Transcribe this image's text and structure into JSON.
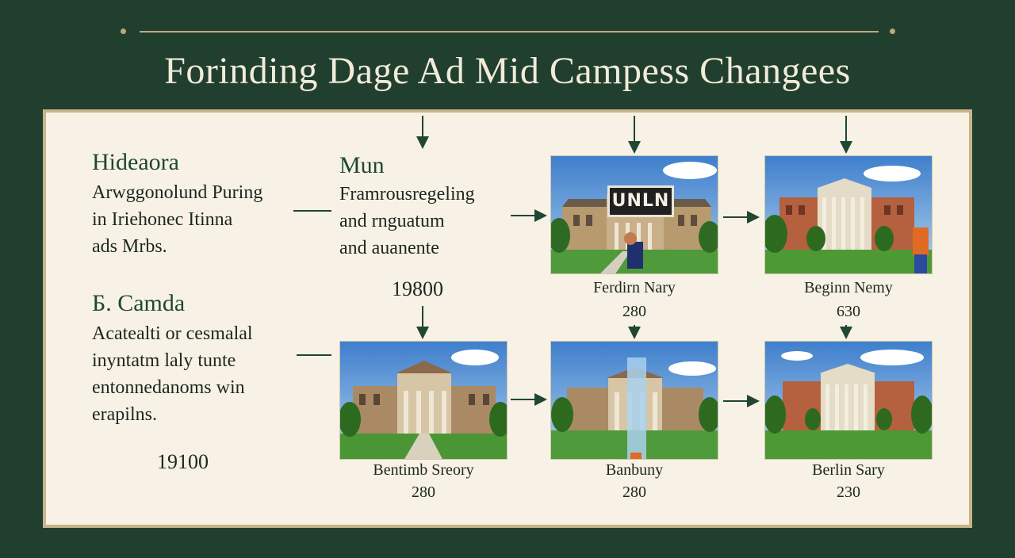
{
  "title": "Forinding Dage Ad Mid Campess Changees",
  "left_blocks": [
    {
      "heading": "Hideaora",
      "lines": [
        "Arwggonolund Puring",
        "in Iriehonec Itinna",
        "ads Mrbs."
      ]
    },
    {
      "heading": "Б. Camda",
      "lines": [
        "Acatealti or cesmalal",
        "inyntatm laly tunte",
        "entonnedanoms win",
        "erapilns."
      ]
    }
  ],
  "middle_block": {
    "heading": "Mun",
    "lines": [
      "Framrousregeling",
      "and rnguatum",
      "and auanente"
    ]
  },
  "years": [
    "19800",
    "19100"
  ],
  "sign_text": "UNLN",
  "photos": [
    {
      "caption": "Ferdirn Nary",
      "value": "280"
    },
    {
      "caption": "Beginn Nemy",
      "value": "630"
    },
    {
      "caption": "Bentimb Sreory",
      "value": "280"
    },
    {
      "caption": "Banbuny",
      "value": "280"
    },
    {
      "caption": "Berlin Sary",
      "value": "230"
    }
  ],
  "colors": {
    "background": "#213f2e",
    "panel": "#f7f2e5",
    "border": "#c8b48a",
    "arrow": "#1f4733"
  }
}
